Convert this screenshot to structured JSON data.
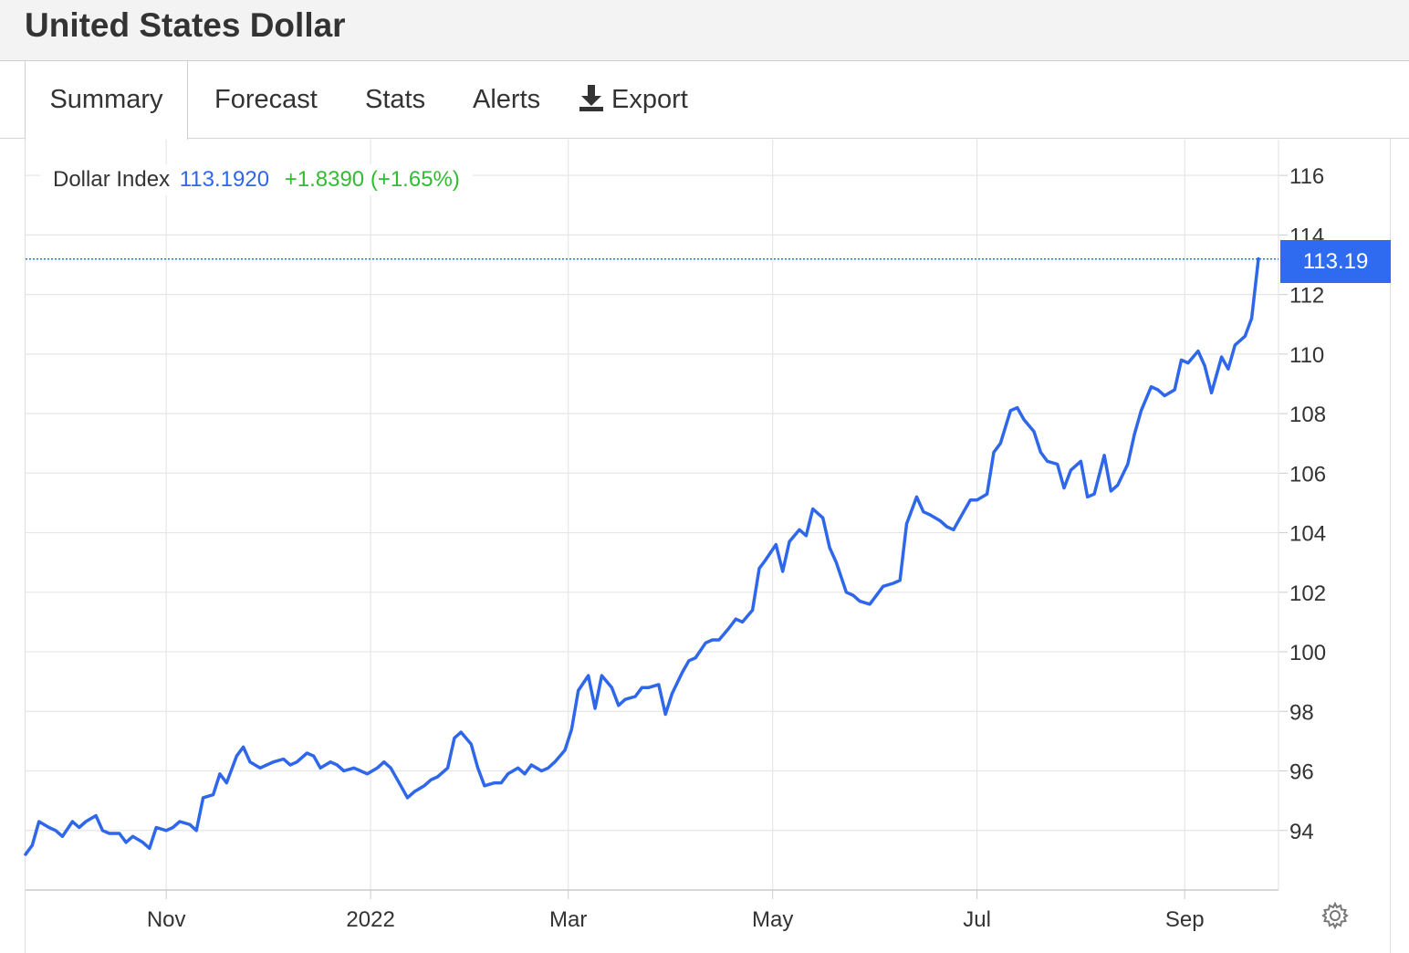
{
  "header": {
    "title": "United States Dollar"
  },
  "tabs": [
    {
      "label": "Summary",
      "active": true
    },
    {
      "label": "Forecast",
      "active": false
    },
    {
      "label": "Stats",
      "active": false
    },
    {
      "label": "Alerts",
      "active": false
    },
    {
      "label": "Export",
      "icon": "download-icon",
      "active": false
    }
  ],
  "legend": {
    "name": "Dollar Index",
    "value": "113.1920",
    "change": "+1.8390 (+1.65%)",
    "value_color": "#2f67ea",
    "change_color": "#33bb33"
  },
  "last_price_label": "113.19",
  "settings_icon": "gear-icon",
  "colors": {
    "line": "#2f67ea",
    "price_tag": "#2f6bf0",
    "grid": "#e6e6e6"
  },
  "chart_data": {
    "type": "line",
    "title": "",
    "xlabel": "",
    "ylabel": "",
    "ylim": [
      92.0,
      117.2
    ],
    "xlim": [
      "2021-09-20",
      "2022-09-29"
    ],
    "yticks": [
      94,
      96,
      98,
      100,
      102,
      104,
      106,
      108,
      110,
      112,
      114,
      116
    ],
    "xticks": [
      {
        "date": "2021-11-01",
        "label": "Nov"
      },
      {
        "date": "2022-01-01",
        "label": "2022"
      },
      {
        "date": "2022-03-01",
        "label": "Mar"
      },
      {
        "date": "2022-05-01",
        "label": "May"
      },
      {
        "date": "2022-07-01",
        "label": "Jul"
      },
      {
        "date": "2022-09-01",
        "label": "Sep"
      }
    ],
    "grid": true,
    "last_value": 113.192,
    "series": [
      {
        "name": "Dollar Index",
        "x": [
          "2021-09-20",
          "2021-09-22",
          "2021-09-24",
          "2021-09-27",
          "2021-09-29",
          "2021-10-01",
          "2021-10-04",
          "2021-10-06",
          "2021-10-08",
          "2021-10-11",
          "2021-10-13",
          "2021-10-15",
          "2021-10-18",
          "2021-10-20",
          "2021-10-22",
          "2021-10-25",
          "2021-10-27",
          "2021-10-29",
          "2021-11-01",
          "2021-11-03",
          "2021-11-05",
          "2021-11-08",
          "2021-11-10",
          "2021-11-12",
          "2021-11-15",
          "2021-11-17",
          "2021-11-19",
          "2021-11-22",
          "2021-11-24",
          "2021-11-26",
          "2021-11-29",
          "2021-12-01",
          "2021-12-03",
          "2021-12-06",
          "2021-12-08",
          "2021-12-10",
          "2021-12-13",
          "2021-12-15",
          "2021-12-17",
          "2021-12-20",
          "2021-12-22",
          "2021-12-24",
          "2021-12-27",
          "2021-12-29",
          "2021-12-31",
          "2022-01-03",
          "2022-01-05",
          "2022-01-07",
          "2022-01-10",
          "2022-01-12",
          "2022-01-14",
          "2022-01-17",
          "2022-01-19",
          "2022-01-21",
          "2022-01-24",
          "2022-01-26",
          "2022-01-28",
          "2022-01-31",
          "2022-02-02",
          "2022-02-04",
          "2022-02-07",
          "2022-02-09",
          "2022-02-11",
          "2022-02-14",
          "2022-02-16",
          "2022-02-18",
          "2022-02-21",
          "2022-02-23",
          "2022-02-25",
          "2022-02-28",
          "2022-03-02",
          "2022-03-04",
          "2022-03-07",
          "2022-03-09",
          "2022-03-11",
          "2022-03-14",
          "2022-03-16",
          "2022-03-18",
          "2022-03-21",
          "2022-03-23",
          "2022-03-25",
          "2022-03-28",
          "2022-03-30",
          "2022-04-01",
          "2022-04-04",
          "2022-04-06",
          "2022-04-08",
          "2022-04-11",
          "2022-04-13",
          "2022-04-15",
          "2022-04-18",
          "2022-04-20",
          "2022-04-22",
          "2022-04-25",
          "2022-04-27",
          "2022-04-29",
          "2022-05-02",
          "2022-05-04",
          "2022-05-06",
          "2022-05-09",
          "2022-05-11",
          "2022-05-13",
          "2022-05-16",
          "2022-05-18",
          "2022-05-20",
          "2022-05-23",
          "2022-05-25",
          "2022-05-27",
          "2022-05-30",
          "2022-06-01",
          "2022-06-03",
          "2022-06-06",
          "2022-06-08",
          "2022-06-10",
          "2022-06-13",
          "2022-06-15",
          "2022-06-17",
          "2022-06-20",
          "2022-06-22",
          "2022-06-24",
          "2022-06-27",
          "2022-06-29",
          "2022-07-01",
          "2022-07-04",
          "2022-07-06",
          "2022-07-08",
          "2022-07-11",
          "2022-07-13",
          "2022-07-15",
          "2022-07-18",
          "2022-07-20",
          "2022-07-22",
          "2022-07-25",
          "2022-07-27",
          "2022-07-29",
          "2022-08-01",
          "2022-08-03",
          "2022-08-05",
          "2022-08-08",
          "2022-08-10",
          "2022-08-12",
          "2022-08-15",
          "2022-08-17",
          "2022-08-19",
          "2022-08-22",
          "2022-08-24",
          "2022-08-26",
          "2022-08-29",
          "2022-08-31",
          "2022-09-02",
          "2022-09-05",
          "2022-09-07",
          "2022-09-09",
          "2022-09-12",
          "2022-09-14",
          "2022-09-16",
          "2022-09-19",
          "2022-09-21",
          "2022-09-23"
        ],
        "y": [
          93.2,
          93.5,
          94.3,
          94.1,
          94.0,
          93.8,
          94.3,
          94.1,
          94.3,
          94.5,
          94.0,
          93.9,
          93.9,
          93.6,
          93.8,
          93.6,
          93.4,
          94.1,
          94.0,
          94.1,
          94.3,
          94.2,
          94.0,
          95.1,
          95.2,
          95.9,
          95.6,
          96.5,
          96.8,
          96.3,
          96.1,
          96.2,
          96.3,
          96.4,
          96.2,
          96.3,
          96.6,
          96.5,
          96.1,
          96.3,
          96.2,
          96.0,
          96.1,
          96.0,
          95.9,
          96.1,
          96.3,
          96.1,
          95.5,
          95.1,
          95.3,
          95.5,
          95.7,
          95.8,
          96.1,
          97.1,
          97.3,
          96.9,
          96.1,
          95.5,
          95.6,
          95.6,
          95.9,
          96.1,
          95.9,
          96.2,
          96.0,
          96.1,
          96.3,
          96.7,
          97.4,
          98.7,
          99.2,
          98.1,
          99.2,
          98.8,
          98.2,
          98.4,
          98.5,
          98.8,
          98.8,
          98.9,
          97.9,
          98.6,
          99.3,
          99.7,
          99.8,
          100.3,
          100.4,
          100.4,
          100.8,
          101.1,
          101.0,
          101.4,
          102.8,
          103.1,
          103.6,
          102.7,
          103.7,
          104.1,
          103.9,
          104.8,
          104.5,
          103.5,
          103.0,
          102.0,
          101.9,
          101.7,
          101.6,
          101.9,
          102.2,
          102.3,
          102.4,
          104.3,
          105.2,
          104.7,
          104.6,
          104.4,
          104.2,
          104.1,
          104.7,
          105.1,
          105.1,
          105.3,
          106.7,
          107.0,
          108.1,
          108.2,
          107.8,
          107.4,
          106.7,
          106.4,
          106.3,
          105.5,
          106.1,
          106.4,
          105.2,
          105.3,
          106.6,
          105.4,
          105.6,
          106.3,
          107.3,
          108.1,
          108.9,
          108.8,
          108.6,
          108.8,
          109.8,
          109.7,
          110.1,
          109.6,
          108.7,
          109.9,
          109.5,
          110.3,
          110.6,
          111.2,
          113.2
        ]
      }
    ]
  }
}
